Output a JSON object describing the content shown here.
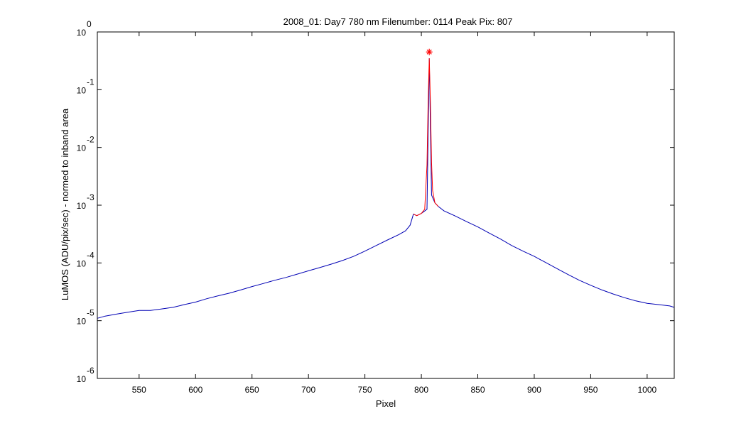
{
  "chart_data": {
    "type": "line",
    "title": "2008_01: Day7  780 nm  Filenumber: 0114 Peak Pix: 807",
    "xlabel": "Pixel",
    "ylabel": "LuMOS (ADU/pix/sec) - normed to inband area",
    "xlim": [
      513,
      1024
    ],
    "ylim": [
      1e-06,
      1
    ],
    "yscale": "log",
    "grid": false,
    "x_ticks": [
      550,
      600,
      650,
      700,
      750,
      800,
      850,
      900,
      950,
      1000
    ],
    "x_tick_labels": [
      "550",
      "600",
      "650",
      "700",
      "750",
      "800",
      "850",
      "900",
      "950",
      "1000"
    ],
    "y_ticks": [
      {
        "value": 1,
        "base": "10",
        "exponent": "0"
      },
      {
        "value": 0.1,
        "base": "10",
        "exponent": "-1"
      },
      {
        "value": 0.01,
        "base": "10",
        "exponent": "-2"
      },
      {
        "value": 0.001,
        "base": "10",
        "exponent": "-3"
      },
      {
        "value": 0.0001,
        "base": "10",
        "exponent": "-4"
      },
      {
        "value": 1e-05,
        "base": "10",
        "exponent": "-5"
      },
      {
        "value": 1e-06,
        "base": "10",
        "exponent": "-6"
      }
    ],
    "series": [
      {
        "color": "#0000b4",
        "x": [
          513,
          520,
          530,
          540,
          550,
          560,
          570,
          580,
          590,
          600,
          610,
          620,
          630,
          640,
          650,
          660,
          670,
          680,
          690,
          700,
          710,
          720,
          730,
          740,
          750,
          760,
          770,
          780,
          786,
          790,
          793,
          796,
          800,
          805,
          807,
          809,
          812,
          815,
          820,
          830,
          840,
          850,
          860,
          870,
          880,
          890,
          900,
          910,
          920,
          930,
          940,
          950,
          960,
          970,
          980,
          990,
          1000,
          1010,
          1020,
          1024
        ],
        "y": [
          1.1e-05,
          1.2e-05,
          1.3e-05,
          1.4e-05,
          1.5e-05,
          1.5e-05,
          1.6e-05,
          1.7e-05,
          1.9e-05,
          2.1e-05,
          2.4e-05,
          2.7e-05,
          3e-05,
          3.4e-05,
          3.9e-05,
          4.4e-05,
          5e-05,
          5.6e-05,
          6.4e-05,
          7.3e-05,
          8.3e-05,
          9.5e-05,
          0.00011,
          0.00013,
          0.00016,
          0.0002,
          0.00025,
          0.00031,
          0.00036,
          0.00045,
          0.0007,
          0.00066,
          0.00072,
          0.00085,
          0.35,
          0.0015,
          0.0011,
          0.00095,
          0.0008,
          0.00065,
          0.00052,
          0.00042,
          0.00033,
          0.00026,
          0.0002,
          0.00016,
          0.00013,
          0.000102,
          8e-05,
          6.3e-05,
          5e-05,
          4.1e-05,
          3.4e-05,
          2.9e-05,
          2.5e-05,
          2.2e-05,
          2e-05,
          1.9e-05,
          1.8e-05,
          1.7e-05
        ]
      },
      {
        "color": "#ff0000",
        "x": [
          793,
          796,
          800,
          803,
          805,
          806,
          807,
          808,
          809,
          810,
          812,
          815
        ],
        "y": [
          0.0007,
          0.00066,
          0.00072,
          0.00085,
          0.005,
          0.06,
          0.35,
          0.06,
          0.0055,
          0.0018,
          0.0011,
          0.00095
        ]
      }
    ],
    "peak_marker": {
      "x": 807,
      "y": 0.45,
      "symbol": "*",
      "color": "#ff0000"
    }
  }
}
